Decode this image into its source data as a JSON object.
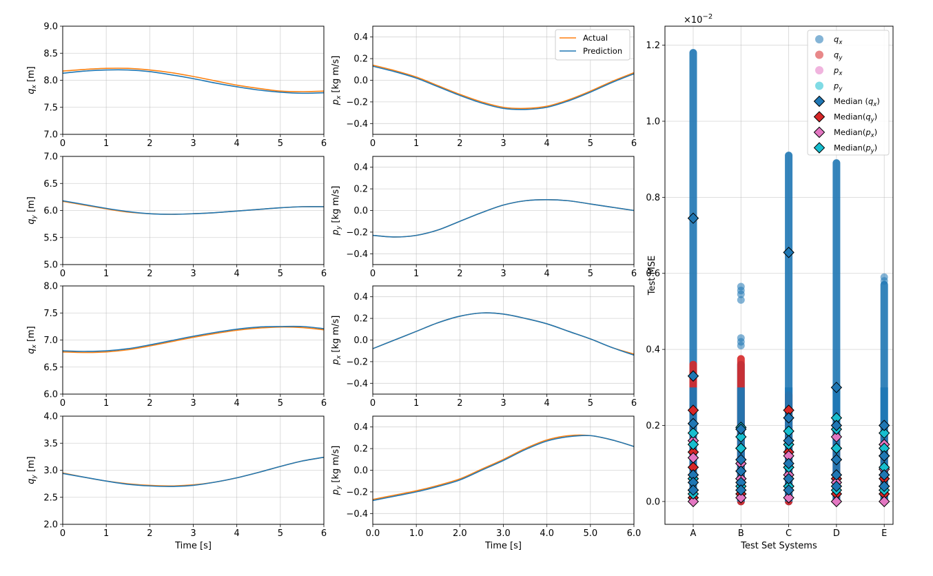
{
  "colors": {
    "actual": "#ff7f0e",
    "prediction": "#1f77b4",
    "qx": "#1f77b4",
    "qy": "#d62728",
    "px": "#e377c2",
    "py": "#17becf"
  },
  "legend_traj": {
    "actual": "Actual",
    "prediction": "Prediction"
  },
  "chart_data": [
    {
      "type": "line",
      "id": "r1c1",
      "xlabel": "",
      "ylabel": "q_x [m]",
      "xlim": [
        0,
        6
      ],
      "ylim": [
        7.0,
        9.0
      ],
      "yticks": [
        "7.0",
        "7.5",
        "8.0",
        "8.5",
        "9.0"
      ],
      "xticks": [
        "0",
        "1",
        "2",
        "3",
        "4",
        "5",
        "6"
      ],
      "x": [
        0,
        0.5,
        1,
        1.5,
        2,
        2.5,
        3,
        3.5,
        4,
        4.5,
        5,
        5.5,
        6
      ],
      "series": [
        {
          "name": "Actual",
          "values": [
            8.17,
            8.2,
            8.22,
            8.22,
            8.19,
            8.14,
            8.07,
            7.99,
            7.91,
            7.85,
            7.8,
            7.79,
            7.8
          ]
        },
        {
          "name": "Prediction",
          "values": [
            8.13,
            8.17,
            8.19,
            8.19,
            8.16,
            8.1,
            8.03,
            7.95,
            7.88,
            7.82,
            7.78,
            7.76,
            7.77
          ]
        }
      ]
    },
    {
      "type": "line",
      "id": "r1c2",
      "xlabel": "",
      "ylabel": "p_x [kg m/s]",
      "xlim": [
        0,
        6
      ],
      "ylim": [
        -0.5,
        0.5
      ],
      "yticks": [
        "-0.4",
        "-0.2",
        "0.0",
        "0.2",
        "0.4"
      ],
      "xticks": [
        "0",
        "1",
        "2",
        "3",
        "4",
        "5",
        "6"
      ],
      "x": [
        0,
        0.5,
        1,
        1.5,
        2,
        2.5,
        3,
        3.5,
        4,
        4.5,
        5,
        5.5,
        6
      ],
      "series": [
        {
          "name": "Actual",
          "values": [
            0.14,
            0.09,
            0.03,
            -0.05,
            -0.13,
            -0.2,
            -0.25,
            -0.26,
            -0.24,
            -0.18,
            -0.1,
            -0.01,
            0.07
          ]
        },
        {
          "name": "Prediction",
          "values": [
            0.13,
            0.08,
            0.02,
            -0.06,
            -0.14,
            -0.21,
            -0.26,
            -0.27,
            -0.25,
            -0.19,
            -0.11,
            -0.02,
            0.06
          ]
        }
      ]
    },
    {
      "type": "line",
      "id": "r2c1",
      "xlabel": "",
      "ylabel": "q_y [m]",
      "xlim": [
        0,
        6
      ],
      "ylim": [
        5.0,
        7.0
      ],
      "yticks": [
        "5.0",
        "5.5",
        "6.0",
        "6.5",
        "7.0"
      ],
      "xticks": [
        "0",
        "1",
        "2",
        "3",
        "4",
        "5",
        "6"
      ],
      "x": [
        0,
        0.5,
        1,
        1.5,
        2,
        2.5,
        3,
        3.5,
        4,
        4.5,
        5,
        5.5,
        6
      ],
      "series": [
        {
          "name": "Actual",
          "values": [
            6.17,
            6.1,
            6.03,
            5.97,
            5.94,
            5.93,
            5.94,
            5.96,
            5.99,
            6.02,
            6.05,
            6.07,
            6.07
          ]
        },
        {
          "name": "Prediction",
          "values": [
            6.18,
            6.11,
            6.04,
            5.98,
            5.94,
            5.93,
            5.94,
            5.96,
            5.99,
            6.02,
            6.05,
            6.07,
            6.07
          ]
        }
      ]
    },
    {
      "type": "line",
      "id": "r2c2",
      "xlabel": "",
      "ylabel": "p_y [kg m/s]",
      "xlim": [
        0,
        6
      ],
      "ylim": [
        -0.5,
        0.5
      ],
      "yticks": [
        "-0.4",
        "-0.2",
        "0.0",
        "0.2",
        "0.4"
      ],
      "xticks": [
        "0",
        "1",
        "2",
        "3",
        "4",
        "5",
        "6"
      ],
      "x": [
        0,
        0.5,
        1,
        1.5,
        2,
        2.5,
        3,
        3.5,
        4,
        4.5,
        5,
        5.5,
        6
      ],
      "series": [
        {
          "name": "Actual",
          "values": [
            -0.23,
            -0.245,
            -0.23,
            -0.18,
            -0.1,
            -0.02,
            0.05,
            0.09,
            0.1,
            0.09,
            0.06,
            0.03,
            0.0
          ]
        },
        {
          "name": "Prediction",
          "values": [
            -0.23,
            -0.245,
            -0.23,
            -0.18,
            -0.1,
            -0.02,
            0.05,
            0.09,
            0.1,
            0.09,
            0.06,
            0.03,
            0.0
          ]
        }
      ]
    },
    {
      "type": "line",
      "id": "r3c1",
      "xlabel": "",
      "ylabel": "q_x [m]",
      "xlim": [
        0,
        6
      ],
      "ylim": [
        6.0,
        8.0
      ],
      "yticks": [
        "6.0",
        "6.5",
        "7.0",
        "7.5",
        "8.0"
      ],
      "xticks": [
        "0",
        "1",
        "2",
        "3",
        "4",
        "5",
        "6"
      ],
      "x": [
        0,
        0.5,
        1,
        1.5,
        2,
        2.5,
        3,
        3.5,
        4,
        4.5,
        5,
        5.5,
        6
      ],
      "series": [
        {
          "name": "Actual",
          "values": [
            6.78,
            6.77,
            6.78,
            6.82,
            6.89,
            6.97,
            7.05,
            7.12,
            7.18,
            7.22,
            7.24,
            7.23,
            7.19
          ]
        },
        {
          "name": "Prediction",
          "values": [
            6.8,
            6.79,
            6.8,
            6.84,
            6.91,
            6.99,
            7.07,
            7.14,
            7.2,
            7.24,
            7.25,
            7.25,
            7.21
          ]
        }
      ]
    },
    {
      "type": "line",
      "id": "r3c2",
      "xlabel": "",
      "ylabel": "p_x [kg m/s]",
      "xlim": [
        0,
        6
      ],
      "ylim": [
        -0.5,
        0.5
      ],
      "yticks": [
        "-0.4",
        "-0.2",
        "0.0",
        "0.2",
        "0.4"
      ],
      "xticks": [
        "0",
        "1",
        "2",
        "3",
        "4",
        "5",
        "6"
      ],
      "x": [
        0,
        0.5,
        1,
        1.5,
        2,
        2.5,
        3,
        3.5,
        4,
        4.5,
        5,
        5.5,
        6
      ],
      "series": [
        {
          "name": "Actual",
          "values": [
            -0.08,
            0.0,
            0.08,
            0.16,
            0.22,
            0.25,
            0.24,
            0.2,
            0.15,
            0.08,
            0.01,
            -0.07,
            -0.13
          ]
        },
        {
          "name": "Prediction",
          "values": [
            -0.08,
            0.0,
            0.08,
            0.16,
            0.22,
            0.25,
            0.24,
            0.2,
            0.15,
            0.08,
            0.01,
            -0.07,
            -0.14
          ]
        }
      ]
    },
    {
      "type": "line",
      "id": "r4c1",
      "xlabel": "Time [s]",
      "ylabel": "q_y [m]",
      "xlim": [
        0,
        6
      ],
      "ylim": [
        2.0,
        4.0
      ],
      "yticks": [
        "2.0",
        "2.5",
        "3.0",
        "3.5",
        "4.0"
      ],
      "xticks": [
        "0",
        "1",
        "2",
        "3",
        "4",
        "5",
        "6"
      ],
      "x": [
        0,
        0.5,
        1,
        1.5,
        2,
        2.5,
        3,
        3.5,
        4,
        4.5,
        5,
        5.5,
        6
      ],
      "series": [
        {
          "name": "Actual",
          "values": [
            2.95,
            2.87,
            2.8,
            2.75,
            2.72,
            2.71,
            2.73,
            2.78,
            2.86,
            2.96,
            3.07,
            3.17,
            3.24
          ]
        },
        {
          "name": "Prediction",
          "values": [
            2.94,
            2.87,
            2.8,
            2.74,
            2.71,
            2.7,
            2.72,
            2.78,
            2.86,
            2.96,
            3.07,
            3.17,
            3.24
          ]
        }
      ]
    },
    {
      "type": "line",
      "id": "r4c2",
      "xlabel": "Time [s]",
      "ylabel": "p_y [kg m/s]",
      "xlim": [
        0,
        6
      ],
      "ylim": [
        -0.5,
        0.5
      ],
      "yticks": [
        "-0.4",
        "-0.2",
        "0.0",
        "0.2",
        "0.4"
      ],
      "xticks": [
        "0.0",
        "1.0",
        "2.0",
        "3.0",
        "4.0",
        "5.0",
        "6.0"
      ],
      "x": [
        0,
        0.5,
        1,
        1.5,
        2,
        2.5,
        3,
        3.5,
        4,
        4.5,
        5,
        5.5,
        6
      ],
      "series": [
        {
          "name": "Actual",
          "values": [
            -0.27,
            -0.23,
            -0.19,
            -0.14,
            -0.08,
            0.01,
            0.1,
            0.2,
            0.28,
            0.32,
            0.32,
            0.28,
            0.22
          ]
        },
        {
          "name": "Prediction",
          "values": [
            -0.28,
            -0.24,
            -0.2,
            -0.15,
            -0.09,
            0.0,
            0.09,
            0.19,
            0.27,
            0.31,
            0.32,
            0.28,
            0.22
          ]
        }
      ]
    },
    {
      "type": "scatter",
      "id": "mse",
      "title": "",
      "xlabel": "Test Set Systems",
      "ylabel": "Test MSE",
      "offset_text": "×10^-2",
      "ylim": [
        -0.06,
        1.25
      ],
      "yticks": [
        "0.0",
        "0.2",
        "0.4",
        "0.6",
        "0.8",
        "1.0",
        "1.2"
      ],
      "categories": [
        "A",
        "B",
        "C",
        "D",
        "E"
      ],
      "legend": [
        "q_x",
        "q_y",
        "p_x",
        "p_y",
        "Median (q_x)",
        "Median(q_y)",
        "Median(p_x)",
        "Median(p_y)"
      ],
      "point_ranges": {
        "qx": [
          [
            0.0,
            1.18
          ],
          [
            0.0,
            0.36
          ],
          [
            0.0,
            0.91
          ],
          [
            0.0,
            0.89
          ],
          [
            0.0,
            0.57
          ]
        ],
        "qy": [
          [
            0.0,
            0.36
          ],
          [
            0.0,
            0.375
          ],
          [
            0.0,
            0.28
          ],
          [
            0.0,
            0.2
          ],
          [
            0.0,
            0.17
          ]
        ],
        "px": [
          [
            0.0,
            0.19
          ],
          [
            0.0,
            0.19
          ],
          [
            0.0,
            0.17
          ],
          [
            0.0,
            0.21
          ],
          [
            0.0,
            0.17
          ]
        ],
        "py": [
          [
            0.0,
            0.2
          ],
          [
            0.0,
            0.2
          ],
          [
            0.0,
            0.19
          ],
          [
            0.0,
            0.22
          ],
          [
            0.0,
            0.19
          ]
        ]
      },
      "outliers_qx": [
        [],
        [
          0.53,
          0.545,
          0.555,
          0.565,
          0.41,
          0.42,
          0.43
        ],
        [],
        [],
        [
          0.59,
          0.58
        ]
      ],
      "medians": {
        "qx": [
          [
            0.745,
            0.33,
            0.205,
            0.07,
            0.05,
            0.03
          ],
          [
            0.19,
            0.11,
            0.08,
            0.05,
            0.03
          ],
          [
            0.655,
            0.22,
            0.16,
            0.1,
            0.06,
            0.03
          ],
          [
            0.3,
            0.2,
            0.11,
            0.07,
            0.04
          ],
          [
            0.2,
            0.12,
            0.07,
            0.04
          ]
        ],
        "qy": [
          [
            0.24,
            0.13,
            0.09,
            0.03,
            0.01
          ],
          [
            0.1,
            0.06,
            0.02
          ],
          [
            0.24,
            0.13,
            0.09,
            0.04
          ],
          [
            0.14,
            0.06,
            0.02
          ],
          [
            0.12,
            0.06,
            0.02
          ]
        ],
        "px": [
          [
            0.16,
            0.115,
            0.06,
            0.0
          ],
          [
            0.14,
            0.1,
            0.06,
            0.01
          ],
          [
            0.12,
            0.07,
            0.01
          ],
          [
            0.17,
            0.11,
            0.05,
            0.0
          ],
          [
            0.15,
            0.085,
            0.04,
            0.0
          ]
        ],
        "py": [
          [
            0.18,
            0.15,
            0.06,
            0.02
          ],
          [
            0.195,
            0.17,
            0.14,
            0.04
          ],
          [
            0.185,
            0.15,
            0.09,
            0.04
          ],
          [
            0.22,
            0.19,
            0.14,
            0.03
          ],
          [
            0.18,
            0.14,
            0.09,
            0.03
          ]
        ]
      }
    }
  ]
}
